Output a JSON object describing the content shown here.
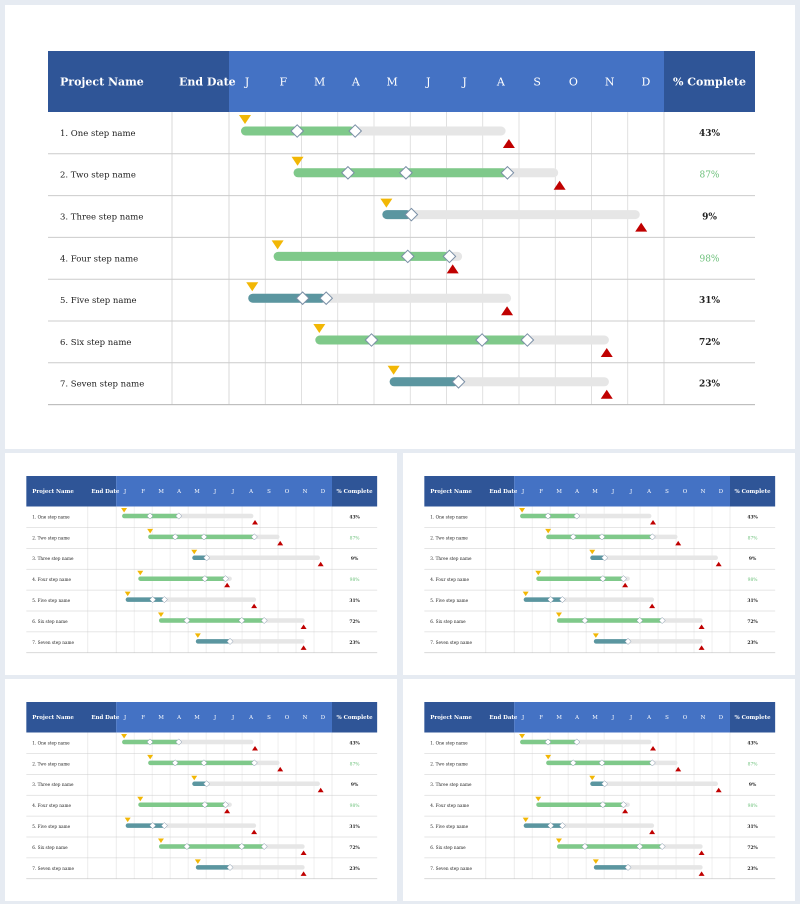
{
  "chart_data": {
    "type": "gantt",
    "columns": {
      "name": "Project Name",
      "end_date": "End Date",
      "complete": "% Complete"
    },
    "months": [
      "J",
      "F",
      "M",
      "A",
      "M",
      "J",
      "J",
      "A",
      "S",
      "O",
      "N",
      "D"
    ],
    "colors": {
      "header_dark": "#2f5597",
      "header_mid": "#4472c4",
      "bar_green": "#7fc98a",
      "bar_teal": "#5b96a0",
      "bar_track": "#e6e6e6",
      "start_marker": "#f2b705",
      "end_marker": "#c00000",
      "pct_green": "#6cc07a",
      "grid": "#d9d9d9"
    },
    "tasks": [
      {
        "name": "1. One step name",
        "pct": "43%",
        "pct_color": "dark",
        "bar_color": "green",
        "start": 0.0,
        "progress": 3.15,
        "track_end": 7.3,
        "milestones": [
          1.55,
          3.15
        ],
        "end_marker": 7.5
      },
      {
        "name": "2. Two step name",
        "pct": "87%",
        "pct_color": "green",
        "bar_color": "green",
        "start": 1.45,
        "progress": 7.35,
        "track_end": 8.75,
        "milestones": [
          2.95,
          4.55,
          7.35
        ],
        "end_marker": 8.9
      },
      {
        "name": "3. Three step name",
        "pct": "9%",
        "pct_color": "dark",
        "bar_color": "teal",
        "start": 3.9,
        "progress": 4.7,
        "track_end": 11.0,
        "milestones": [
          4.7
        ],
        "end_marker": 11.15
      },
      {
        "name": "4. Four step name",
        "pct": "98%",
        "pct_color": "green",
        "bar_color": "green",
        "start": 0.9,
        "progress": 5.75,
        "track_end": 6.1,
        "milestones": [
          4.6,
          5.75
        ],
        "end_marker": 5.95
      },
      {
        "name": "5. Five step name",
        "pct": "31%",
        "pct_color": "dark",
        "bar_color": "teal",
        "start": 0.2,
        "progress": 2.35,
        "track_end": 7.45,
        "milestones": [
          1.7,
          2.35
        ],
        "end_marker": 7.45
      },
      {
        "name": "6. Six step name",
        "pct": "72%",
        "pct_color": "dark",
        "bar_color": "green",
        "start": 2.05,
        "progress": 7.9,
        "track_end": 10.15,
        "milestones": [
          3.6,
          6.65,
          7.9
        ],
        "end_marker": 10.2
      },
      {
        "name": "7. Seven step name",
        "pct": "23%",
        "pct_color": "dark",
        "bar_color": "teal",
        "start": 4.1,
        "progress": 6.0,
        "track_end": 10.15,
        "milestones": [
          6.0
        ],
        "end_marker": 10.2
      }
    ]
  }
}
